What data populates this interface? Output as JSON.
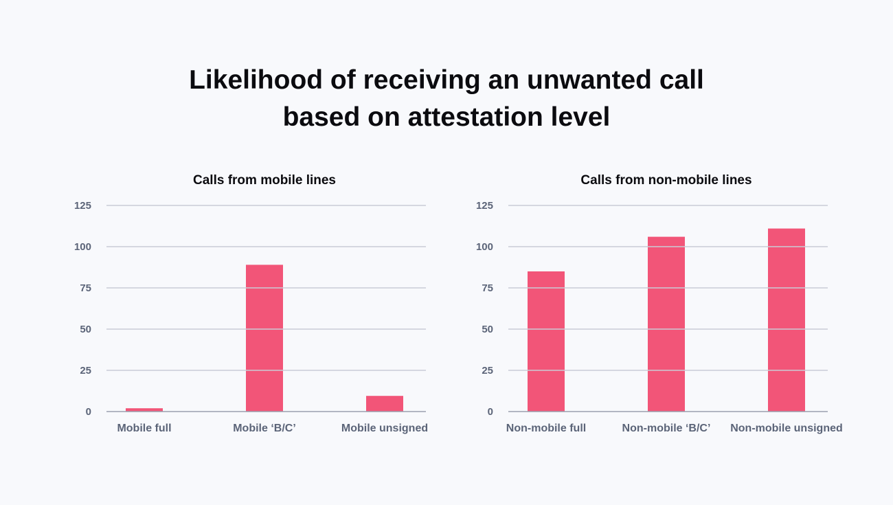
{
  "title": {
    "line1": "Likelihood of receiving an unwanted call",
    "line2": "based on attestation level"
  },
  "colors": {
    "bar": "#f25578",
    "grid": "#c9ccd6",
    "axis_text": "#5b6478",
    "background": "#f8f9fc"
  },
  "chart_data": [
    {
      "type": "bar",
      "title": "Calls from mobile lines",
      "categories": [
        "Mobile full",
        "Mobile ‘B/C’",
        "Mobile unsigned"
      ],
      "values": [
        2,
        89,
        9.5
      ],
      "ylim": [
        0,
        125
      ],
      "yticks": [
        0,
        25,
        50,
        75,
        100,
        125
      ],
      "grid": true,
      "legend": "none"
    },
    {
      "type": "bar",
      "title": "Calls from non-mobile lines",
      "categories": [
        "Non-mobile full",
        "Non-mobile ‘B/C’",
        "Non-mobile unsigned"
      ],
      "values": [
        85,
        106,
        111
      ],
      "ylim": [
        0,
        125
      ],
      "yticks": [
        0,
        25,
        50,
        75,
        100,
        125
      ],
      "grid": true,
      "legend": "none"
    }
  ]
}
